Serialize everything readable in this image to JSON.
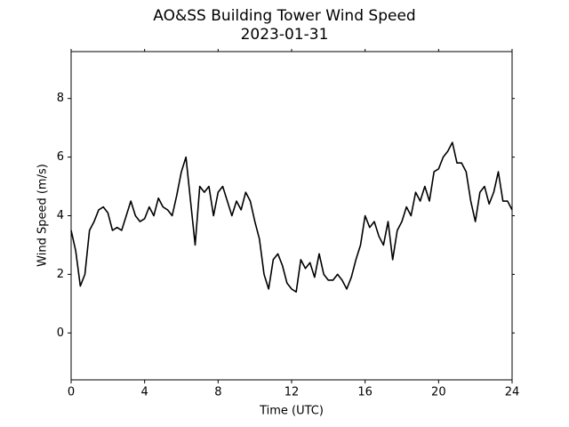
{
  "chart_data": {
    "type": "line",
    "title": "AO&SS Building Tower Wind Speed",
    "subtitle": "2023-01-31",
    "x_label": "Time (UTC)",
    "y_label": "Wind Speed (m/s)",
    "x": [
      0,
      0.25,
      0.5,
      0.75,
      1,
      1.25,
      1.5,
      1.75,
      2,
      2.25,
      2.5,
      2.75,
      3,
      3.25,
      3.5,
      3.75,
      4,
      4.25,
      4.5,
      4.75,
      5,
      5.25,
      5.5,
      5.75,
      6,
      6.25,
      6.5,
      6.75,
      7,
      7.25,
      7.5,
      7.75,
      8,
      8.25,
      8.5,
      8.75,
      9,
      9.25,
      9.5,
      9.75,
      10,
      10.25,
      10.5,
      10.75,
      11,
      11.25,
      11.5,
      11.75,
      12,
      12.25,
      12.5,
      12.75,
      13,
      13.25,
      13.5,
      13.75,
      14,
      14.25,
      14.5,
      14.75,
      15,
      15.25,
      15.5,
      15.75,
      16,
      16.25,
      16.5,
      16.75,
      17,
      17.25,
      17.5,
      17.75,
      18,
      18.25,
      18.5,
      18.75,
      19,
      19.25,
      19.5,
      19.75,
      20,
      20.25,
      20.5,
      20.75,
      21,
      21.25,
      21.5,
      21.75,
      22,
      22.25,
      22.5,
      22.75,
      23,
      23.25,
      23.5,
      23.75,
      24
    ],
    "series": [
      {
        "name": "Wind Speed",
        "color": "#000000",
        "values": [
          3.5,
          2.8,
          1.6,
          2.0,
          3.5,
          3.8,
          4.2,
          4.3,
          4.1,
          3.5,
          3.6,
          3.5,
          4.0,
          4.5,
          4.0,
          3.8,
          3.9,
          4.3,
          4.0,
          4.6,
          4.3,
          4.2,
          4.0,
          4.7,
          5.5,
          6.0,
          4.5,
          3.0,
          5.0,
          4.8,
          5.0,
          4.0,
          4.8,
          5.0,
          4.5,
          4.0,
          4.5,
          4.2,
          4.8,
          4.5,
          3.8,
          3.2,
          2.0,
          1.5,
          2.5,
          2.7,
          2.3,
          1.7,
          1.5,
          1.4,
          2.5,
          2.2,
          2.4,
          1.9,
          2.7,
          2.0,
          1.8,
          1.8,
          2.0,
          1.8,
          1.5,
          1.9,
          2.5,
          3.0,
          4.0,
          3.6,
          3.8,
          3.3,
          3.0,
          3.8,
          2.5,
          3.5,
          3.8,
          4.3,
          4.0,
          4.8,
          4.5,
          5.0,
          4.5,
          5.5,
          5.6,
          6.0,
          6.2,
          6.5,
          5.8,
          5.8,
          5.5,
          4.5,
          3.8,
          4.8,
          5.0,
          4.4,
          4.8,
          5.5,
          4.5,
          4.5,
          4.2
        ]
      }
    ],
    "xlim": [
      0,
      24
    ],
    "xticks": [
      0,
      4,
      8,
      12,
      16,
      20,
      24
    ],
    "ylim": [
      -1.6,
      9.6
    ],
    "yticks": [
      0,
      2,
      4,
      6,
      8
    ]
  }
}
